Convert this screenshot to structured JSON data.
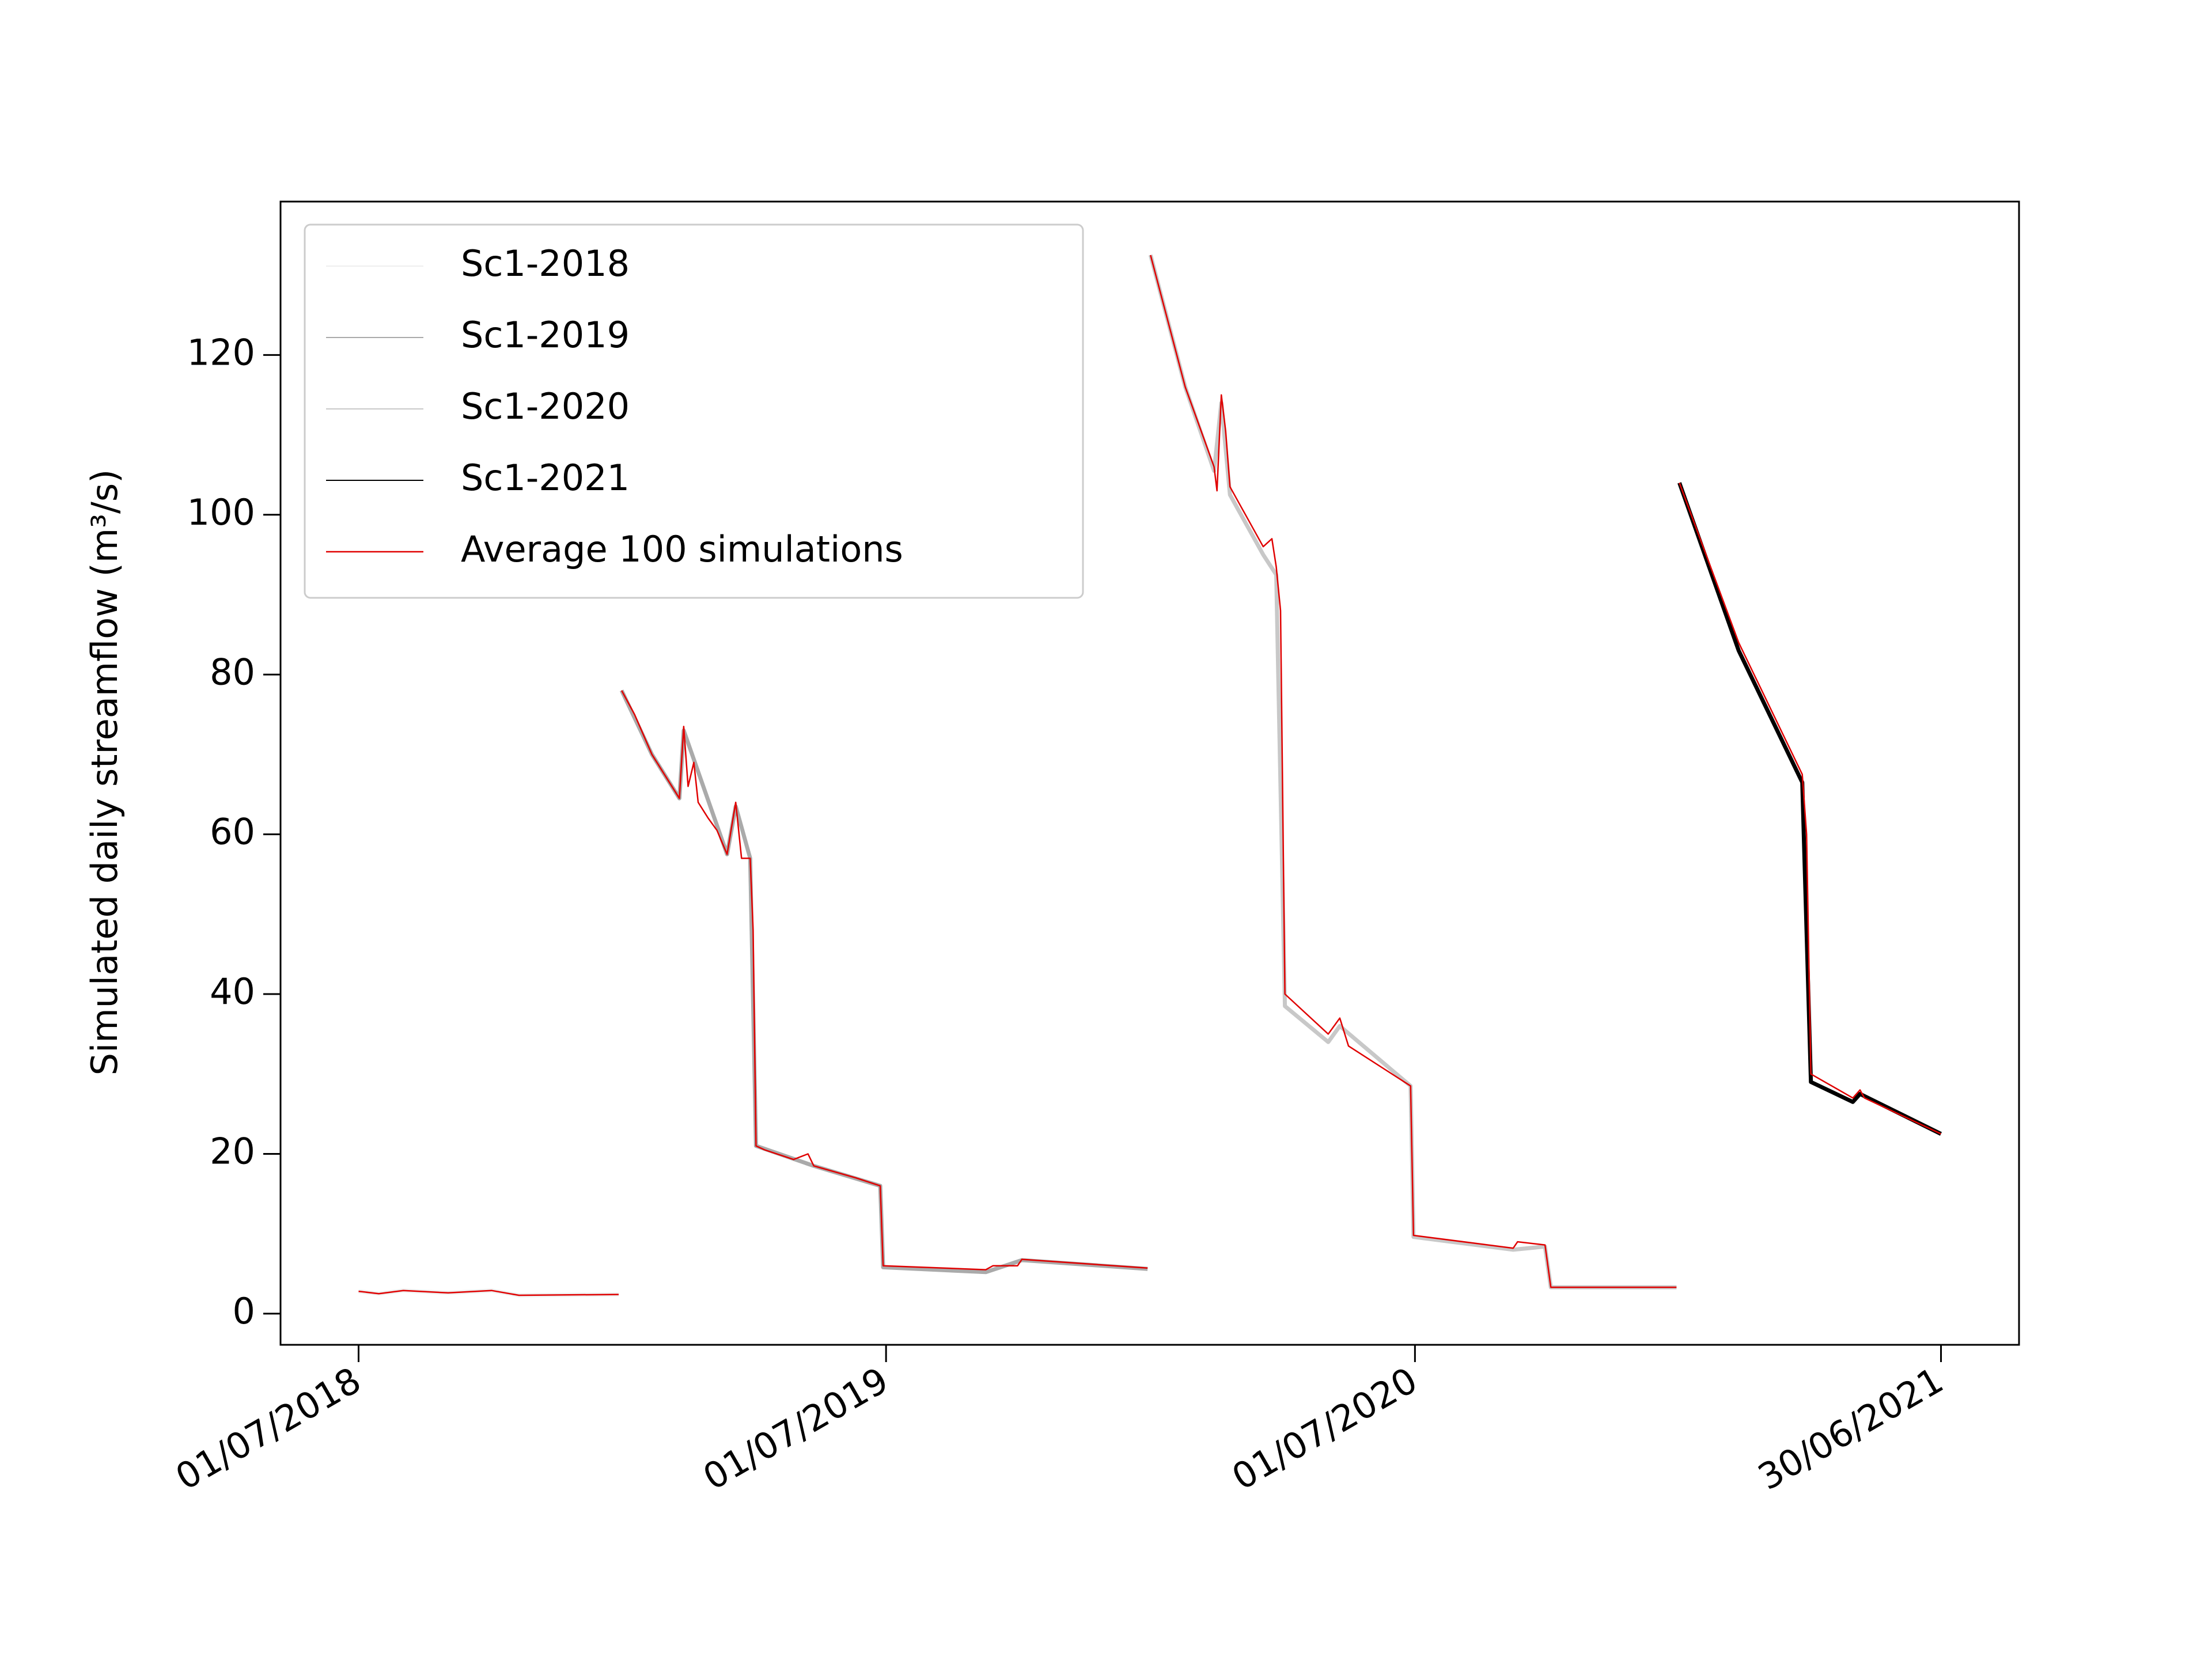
{
  "chart_data": {
    "type": "line",
    "y_label": "Simulated daily streamflow (m³/s)",
    "xlim": [
      "2018-05-08",
      "2021-08-23"
    ],
    "xticks": [
      {
        "value": "2018-07-01",
        "label": "01/07/2018"
      },
      {
        "value": "2019-07-01",
        "label": "01/07/2019"
      },
      {
        "value": "2020-07-01",
        "label": "01/07/2020"
      },
      {
        "value": "2021-06-30",
        "label": "30/06/2021"
      }
    ],
    "ylim": [
      -3.9,
      139.2
    ],
    "yticks": [
      0,
      20,
      40,
      60,
      80,
      100,
      120
    ],
    "grid": false,
    "legend": "upper left",
    "series": [
      {
        "name": "Sc1-2018",
        "color": "#eeeeee",
        "x": [
          "2018-07-01",
          "2018-07-15",
          "2018-08-01",
          "2018-09-01",
          "2018-10-01",
          "2018-10-20",
          "2018-12-28"
        ],
        "values": [
          2.8,
          2.5,
          2.9,
          2.6,
          2.9,
          2.3,
          2.4
        ]
      },
      {
        "name": "Sc1-2019",
        "color": "#aaaaaa",
        "x": [
          "2018-12-30",
          "2019-01-20",
          "2019-02-08",
          "2019-02-11",
          "2019-03-13",
          "2019-03-19",
          "2019-03-29",
          "2019-04-02",
          "2019-05-12",
          "2019-06-27",
          "2019-06-29",
          "2019-09-08",
          "2019-10-03",
          "2019-12-29"
        ],
        "values": [
          78,
          70,
          64.5,
          73,
          57.5,
          63.5,
          57,
          21,
          18.5,
          16,
          5.8,
          5.2,
          6.7,
          5.6
        ]
      },
      {
        "name": "Sc1-2020",
        "color": "#c8c8c8",
        "x": [
          "2019-12-31",
          "2020-01-24",
          "2020-02-13",
          "2020-02-18",
          "2020-02-24",
          "2020-03-18",
          "2020-03-27",
          "2020-04-02",
          "2020-05-02",
          "2020-05-10",
          "2020-06-28",
          "2020-06-30",
          "2020-09-07",
          "2020-09-29",
          "2020-10-03",
          "2020-12-29"
        ],
        "values": [
          132.5,
          116,
          105.5,
          114,
          102.5,
          95,
          92.5,
          38.5,
          34,
          36,
          28.5,
          9.6,
          8,
          8.4,
          3.3,
          3.3
        ]
      },
      {
        "name": "Sc1-2021",
        "color": "#000000",
        "x": [
          "2020-12-31",
          "2021-02-10",
          "2021-03-26",
          "2021-04-01",
          "2021-04-30",
          "2021-05-05",
          "2021-06-30"
        ],
        "values": [
          104,
          83,
          66.5,
          29,
          26.5,
          27.5,
          22.5
        ]
      },
      {
        "name": "Average 100 simulations",
        "color": "#e00000",
        "x": [
          "2018-07-01",
          "2018-07-15",
          "2018-08-01",
          "2018-09-01",
          "2018-10-01",
          "2018-10-20",
          "2018-12-28",
          "2018-12-29",
          "2018-12-30",
          "2019-01-08",
          "2019-01-20",
          "2019-02-08",
          "2019-02-11",
          "2019-02-14",
          "2019-02-18",
          "2019-02-21",
          "2019-02-28",
          "2019-03-06",
          "2019-03-13",
          "2019-03-19",
          "2019-03-23",
          "2019-03-29",
          "2019-03-31",
          "2019-04-02",
          "2019-04-08",
          "2019-04-28",
          "2019-05-08",
          "2019-05-12",
          "2019-06-10",
          "2019-06-27",
          "2019-06-29",
          "2019-09-08",
          "2019-09-13",
          "2019-09-30",
          "2019-10-03",
          "2019-12-29",
          "2019-12-30",
          "2019-12-31",
          "2020-01-24",
          "2020-02-13",
          "2020-02-15",
          "2020-02-18",
          "2020-02-21",
          "2020-02-24",
          "2020-03-18",
          "2020-03-24",
          "2020-03-27",
          "2020-03-30",
          "2020-04-02",
          "2020-05-02",
          "2020-05-10",
          "2020-05-16",
          "2020-06-28",
          "2020-06-30",
          "2020-09-07",
          "2020-09-10",
          "2020-09-29",
          "2020-10-03",
          "2020-12-29",
          "2020-12-30",
          "2020-12-31",
          "2021-02-10",
          "2021-03-26",
          "2021-03-29",
          "2021-04-01",
          "2021-04-30",
          "2021-05-05",
          "2021-05-08",
          "2021-06-30"
        ],
        "values": [
          2.8,
          2.5,
          2.9,
          2.6,
          2.9,
          2.3,
          2.4,
          null,
          78,
          75,
          70,
          64.5,
          73.5,
          66,
          69,
          64,
          62,
          60.5,
          57.5,
          64,
          57,
          57,
          48,
          21,
          20.5,
          19.3,
          20,
          18.5,
          17,
          16,
          6,
          5.5,
          6,
          6,
          6.8,
          5.7,
          null,
          132.5,
          116,
          106,
          103,
          115,
          110.5,
          103.5,
          96,
          97,
          93.5,
          88,
          40,
          35,
          37,
          33.5,
          28.5,
          9.8,
          8.2,
          9,
          8.6,
          3.3,
          3.3,
          null,
          104,
          84,
          67.5,
          60,
          30,
          27,
          28,
          27,
          22.5
        ]
      }
    ]
  }
}
